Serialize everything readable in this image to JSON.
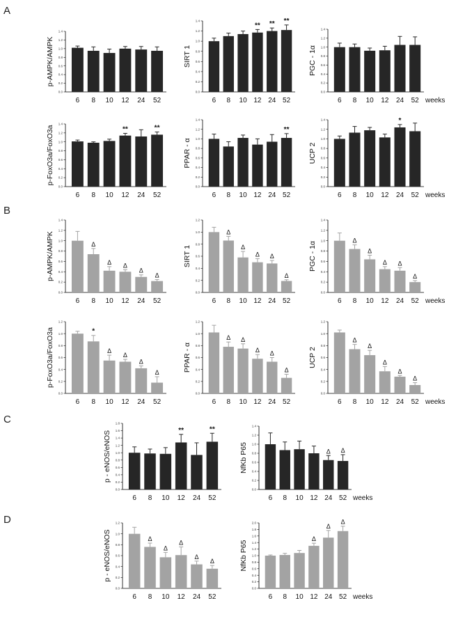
{
  "panel_labels": [
    "A",
    "B",
    "C",
    "D"
  ],
  "weeks_label": "weeks",
  "colors": {
    "dark": "#262626",
    "light": "#a3a3a3",
    "axis": "#000000"
  },
  "chart_data": [
    {
      "type": "bar",
      "panel": "A",
      "categories": [
        "6",
        "8",
        "10",
        "12",
        "24",
        "52"
      ],
      "values": [
        1.02,
        0.95,
        0.9,
        1.0,
        0.98,
        0.95
      ],
      "errors": [
        0.04,
        0.09,
        0.09,
        0.05,
        0.07,
        0.09
      ],
      "markers": [
        "",
        "",
        "",
        "",
        "",
        ""
      ],
      "ylabel": "p-AMPK/AMPK",
      "ylim": [
        0,
        1.4
      ],
      "yticks": [
        "0.0",
        "0.2",
        "0.4",
        "0.6",
        "0.8",
        "1.0",
        "1.2",
        "1.4"
      ],
      "show_weeks": false,
      "color": "dark"
    },
    {
      "type": "bar",
      "panel": "A",
      "categories": [
        "6",
        "8",
        "10",
        "12",
        "24",
        "52"
      ],
      "values": [
        1.0,
        1.1,
        1.14,
        1.17,
        1.2,
        1.22
      ],
      "errors": [
        0.06,
        0.06,
        0.06,
        0.06,
        0.06,
        0.1
      ],
      "markers": [
        "",
        "",
        "",
        "**",
        "**",
        "**"
      ],
      "ylabel": "SIRT 1",
      "ylim": [
        0,
        1.4
      ],
      "yticks": [
        "0.0",
        "0.2",
        "0.4",
        "0.6",
        "0.8",
        "1.0",
        "1.2",
        "1.4"
      ],
      "show_weeks": false,
      "color": "dark"
    },
    {
      "type": "bar",
      "panel": "A",
      "categories": [
        "6",
        "8",
        "10",
        "12",
        "24",
        "52"
      ],
      "values": [
        1.0,
        1.0,
        0.92,
        0.93,
        1.05,
        1.05
      ],
      "errors": [
        0.09,
        0.07,
        0.06,
        0.09,
        0.19,
        0.18
      ],
      "markers": [
        "",
        "",
        "",
        "",
        "",
        ""
      ],
      "ylabel": "PGC - 1α",
      "ylim": [
        0,
        1.4
      ],
      "yticks": [
        "0.0",
        "0.2",
        "0.4",
        "0.6",
        "0.8",
        "1.0",
        "1.2",
        "1.4"
      ],
      "show_weeks": true,
      "color": "dark"
    },
    {
      "type": "bar",
      "panel": "A",
      "categories": [
        "6",
        "8",
        "10",
        "12",
        "24",
        "52"
      ],
      "values": [
        1.01,
        0.98,
        1.02,
        1.14,
        1.12,
        1.16
      ],
      "errors": [
        0.03,
        0.02,
        0.04,
        0.05,
        0.15,
        0.06
      ],
      "markers": [
        "",
        "",
        "",
        "**",
        "",
        "**"
      ],
      "ylabel": "p-FoxO3a/FoxO3a",
      "ylim": [
        0,
        1.4
      ],
      "yticks": [
        "0.0",
        "0.2",
        "0.4",
        "0.6",
        "0.8",
        "1.0",
        "1.2",
        "1.4"
      ],
      "show_weeks": false,
      "color": "dark"
    },
    {
      "type": "bar",
      "panel": "A",
      "categories": [
        "6",
        "8",
        "10",
        "12",
        "24",
        "52"
      ],
      "values": [
        1.0,
        0.84,
        1.02,
        0.88,
        0.94,
        1.02
      ],
      "errors": [
        0.1,
        0.1,
        0.06,
        0.12,
        0.15,
        0.09
      ],
      "markers": [
        "",
        "",
        "",
        "",
        "",
        "**"
      ],
      "ylabel": "PPAR - α",
      "ylim": [
        0,
        1.4
      ],
      "yticks": [
        "0.0",
        "0.2",
        "0.4",
        "0.6",
        "0.8",
        "1.0",
        "1.2",
        "1.4"
      ],
      "show_weeks": false,
      "color": "dark"
    },
    {
      "type": "bar",
      "panel": "A",
      "categories": [
        "6",
        "8",
        "10",
        "12",
        "24",
        "52"
      ],
      "values": [
        1.0,
        1.13,
        1.18,
        1.03,
        1.24,
        1.16
      ],
      "errors": [
        0.06,
        0.13,
        0.06,
        0.07,
        0.06,
        0.17
      ],
      "markers": [
        "",
        "",
        "",
        "",
        "*",
        ""
      ],
      "ylabel": "UCP 2",
      "ylim": [
        0,
        1.4
      ],
      "yticks": [
        "0.0",
        "0.2",
        "0.4",
        "0.6",
        "0.8",
        "1.0",
        "1.2",
        "1.4"
      ],
      "show_weeks": true,
      "color": "dark"
    },
    {
      "type": "bar",
      "panel": "B",
      "categories": [
        "6",
        "8",
        "10",
        "12",
        "24",
        "52"
      ],
      "values": [
        1.0,
        0.74,
        0.42,
        0.4,
        0.3,
        0.22
      ],
      "errors": [
        0.18,
        0.11,
        0.08,
        0.04,
        0.04,
        0.03
      ],
      "markers": [
        "",
        "Δ",
        "Δ",
        "Δ",
        "Δ",
        "Δ"
      ],
      "ylabel": "p-AMPK/AMPK",
      "ylim": [
        0,
        1.4
      ],
      "yticks": [
        "0.0",
        "0.2",
        "0.4",
        "0.6",
        "0.8",
        "1.0",
        "1.2",
        "1.4"
      ],
      "show_weeks": false,
      "color": "light"
    },
    {
      "type": "bar",
      "panel": "B",
      "categories": [
        "6",
        "8",
        "10",
        "12",
        "24",
        "52"
      ],
      "values": [
        1.0,
        0.86,
        0.58,
        0.5,
        0.48,
        0.19
      ],
      "errors": [
        0.08,
        0.07,
        0.1,
        0.06,
        0.05,
        0.02
      ],
      "markers": [
        "",
        "Δ",
        "Δ",
        "Δ",
        "Δ",
        "Δ"
      ],
      "ylabel": "SIRT 1",
      "ylim": [
        0,
        1.2
      ],
      "yticks": [
        "0.0",
        "0.2",
        "0.4",
        "0.6",
        "0.8",
        "1.0",
        "1.2"
      ],
      "show_weeks": false,
      "color": "light"
    },
    {
      "type": "bar",
      "panel": "B",
      "categories": [
        "6",
        "8",
        "10",
        "12",
        "24",
        "52"
      ],
      "values": [
        1.0,
        0.84,
        0.64,
        0.45,
        0.42,
        0.2
      ],
      "errors": [
        0.15,
        0.08,
        0.08,
        0.05,
        0.06,
        0.03
      ],
      "markers": [
        "",
        "Δ",
        "Δ",
        "Δ",
        "Δ",
        "Δ"
      ],
      "ylabel": "PGC - 1α",
      "ylim": [
        0,
        1.4
      ],
      "yticks": [
        "0.0",
        "0.2",
        "0.4",
        "0.6",
        "0.8",
        "1.0",
        "1.2",
        "1.4"
      ],
      "show_weeks": true,
      "color": "light"
    },
    {
      "type": "bar",
      "panel": "B",
      "categories": [
        "6",
        "8",
        "10",
        "12",
        "24",
        "52"
      ],
      "values": [
        1.0,
        0.87,
        0.55,
        0.53,
        0.42,
        0.18
      ],
      "errors": [
        0.04,
        0.1,
        0.09,
        0.04,
        0.04,
        0.1
      ],
      "markers": [
        "",
        "*",
        "Δ",
        "Δ",
        "Δ",
        "Δ"
      ],
      "ylabel": "p-FoxO3a/FoxO3a",
      "ylim": [
        0,
        1.2
      ],
      "yticks": [
        "0.0",
        "0.2",
        "0.4",
        "0.6",
        "0.8",
        "1.0",
        "1.2"
      ],
      "show_weeks": false,
      "color": "light"
    },
    {
      "type": "bar",
      "panel": "B",
      "categories": [
        "6",
        "8",
        "10",
        "12",
        "24",
        "52"
      ],
      "values": [
        1.02,
        0.78,
        0.75,
        0.58,
        0.53,
        0.26
      ],
      "errors": [
        0.12,
        0.08,
        0.08,
        0.07,
        0.07,
        0.06
      ],
      "markers": [
        "",
        "Δ",
        "Δ",
        "Δ",
        "Δ",
        "Δ"
      ],
      "ylabel": "PPAR - α",
      "ylim": [
        0,
        1.2
      ],
      "yticks": [
        "0.0",
        "0.2",
        "0.4",
        "0.6",
        "0.8",
        "1.0",
        "1.2"
      ],
      "show_weeks": false,
      "color": "light"
    },
    {
      "type": "bar",
      "panel": "B",
      "categories": [
        "6",
        "8",
        "10",
        "12",
        "24",
        "52"
      ],
      "values": [
        1.02,
        0.74,
        0.64,
        0.37,
        0.28,
        0.14
      ],
      "errors": [
        0.04,
        0.08,
        0.08,
        0.08,
        0.02,
        0.04
      ],
      "markers": [
        "",
        "Δ",
        "Δ",
        "Δ",
        "Δ",
        "Δ"
      ],
      "ylabel": "UCP 2",
      "ylim": [
        0,
        1.2
      ],
      "yticks": [
        "0.0",
        "0.2",
        "0.4",
        "0.6",
        "0.8",
        "1.0",
        "1.2"
      ],
      "show_weeks": true,
      "color": "light"
    },
    {
      "type": "bar",
      "panel": "C",
      "categories": [
        "6",
        "8",
        "10",
        "12",
        "24",
        "52"
      ],
      "values": [
        1.0,
        0.98,
        0.97,
        1.28,
        0.94,
        1.3
      ],
      "errors": [
        0.16,
        0.12,
        0.17,
        0.22,
        0.33,
        0.23
      ],
      "markers": [
        "",
        "",
        "",
        "**",
        "",
        "**"
      ],
      "ylabel": "p - eNOS/eNOS",
      "ylim": [
        0,
        1.8
      ],
      "yticks": [
        "0.0",
        "0.2",
        "0.4",
        "0.6",
        "0.8",
        "1.0",
        "1.2",
        "1.4",
        "1.6",
        "1.8"
      ],
      "show_weeks": false,
      "color": "dark"
    },
    {
      "type": "bar",
      "panel": "C",
      "categories": [
        "6",
        "8",
        "10",
        "12",
        "24",
        "52"
      ],
      "values": [
        1.0,
        0.87,
        0.89,
        0.8,
        0.65,
        0.63
      ],
      "errors": [
        0.25,
        0.18,
        0.18,
        0.16,
        0.1,
        0.14
      ],
      "markers": [
        "",
        "",
        "",
        "",
        "Δ",
        "Δ"
      ],
      "ylabel": "NfKb P65",
      "ylim": [
        0,
        1.4
      ],
      "yticks": [
        "0.0",
        "0.2",
        "0.4",
        "0.6",
        "0.8",
        "1.0",
        "1.2",
        "1.4"
      ],
      "show_weeks": true,
      "color": "dark"
    },
    {
      "type": "bar",
      "panel": "D",
      "categories": [
        "6",
        "8",
        "10",
        "12",
        "24",
        "52"
      ],
      "values": [
        1.0,
        0.76,
        0.57,
        0.61,
        0.44,
        0.36
      ],
      "errors": [
        0.12,
        0.07,
        0.09,
        0.15,
        0.06,
        0.06
      ],
      "markers": [
        "",
        "Δ",
        "Δ",
        "Δ",
        "Δ",
        "Δ"
      ],
      "ylabel": "p - eNOS/eNOS",
      "ylim": [
        0,
        1.2
      ],
      "yticks": [
        "0.0",
        "0.2",
        "0.4",
        "0.6",
        "0.8",
        "1.0",
        "1.2"
      ],
      "show_weeks": false,
      "color": "light"
    },
    {
      "type": "bar",
      "panel": "D",
      "categories": [
        "6",
        "8",
        "10",
        "12",
        "24",
        "52"
      ],
      "values": [
        1.0,
        1.02,
        1.08,
        1.3,
        1.55,
        1.75
      ],
      "errors": [
        0.02,
        0.05,
        0.08,
        0.08,
        0.22,
        0.15
      ],
      "markers": [
        "",
        "",
        "",
        "Δ",
        "Δ",
        "Δ"
      ],
      "ylabel": "NfKb P65",
      "ylim": [
        0,
        2.0
      ],
      "yticks": [
        "0.0",
        "0.2",
        "0.4",
        "0.6",
        "0.8",
        "1.0",
        "1.2",
        "1.4",
        "1.6",
        "1.8",
        "2.0"
      ],
      "show_weeks": true,
      "color": "light"
    }
  ]
}
